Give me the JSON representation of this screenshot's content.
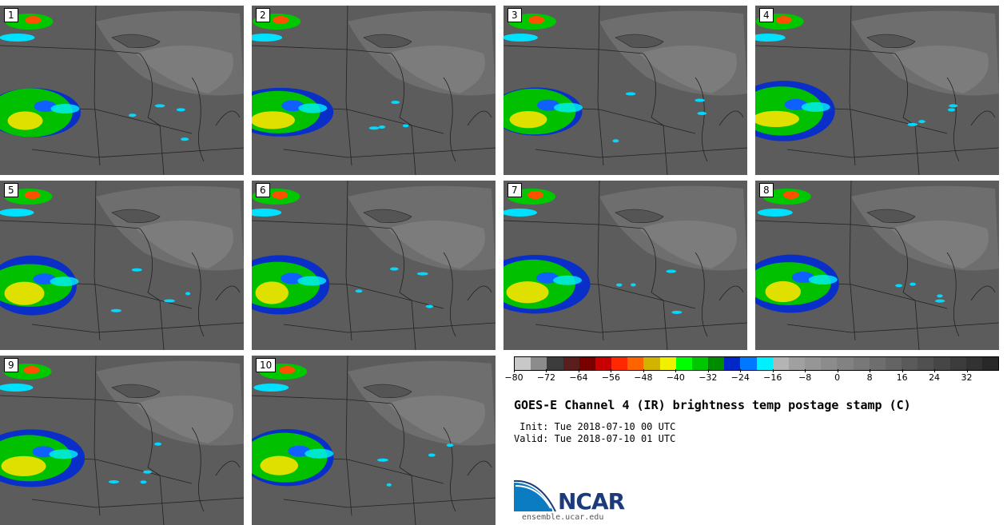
{
  "panels": [
    {
      "label": "1"
    },
    {
      "label": "2"
    },
    {
      "label": "3"
    },
    {
      "label": "4"
    },
    {
      "label": "5"
    },
    {
      "label": "6"
    },
    {
      "label": "7"
    },
    {
      "label": "8"
    },
    {
      "label": "9"
    },
    {
      "label": "10"
    }
  ],
  "colorbar": {
    "colors": [
      "#c8c8c8",
      "#8c8c8c",
      "#3c3c3c",
      "#5a1e1e",
      "#7a0000",
      "#c80000",
      "#ff2800",
      "#ff6400",
      "#d2b400",
      "#f0f000",
      "#00ff00",
      "#00c800",
      "#008c00",
      "#0028c8",
      "#0078ff",
      "#00f0ff",
      "#b4b4b4",
      "#a0a0a0",
      "#969696",
      "#8c8c8c",
      "#828282",
      "#787878",
      "#6e6e6e",
      "#646464",
      "#5a5a5a",
      "#505050",
      "#464646",
      "#3c3c3c",
      "#323232",
      "#282828"
    ],
    "ticks": [
      "−80",
      "−72",
      "−64",
      "−56",
      "−48",
      "−40",
      "−32",
      "−24",
      "−16",
      "−8",
      "0",
      "8",
      "16",
      "24",
      "32"
    ]
  },
  "title": "GOES-E Channel 4 (IR) brightness temp postage stamp (C)",
  "init_text": " Init: Tue 2018-07-10 00 UTC",
  "valid_text": "Valid: Tue 2018-07-10 01 UTC",
  "logo": {
    "name": "NCAR",
    "url": "ensemble.ucar.edu"
  }
}
